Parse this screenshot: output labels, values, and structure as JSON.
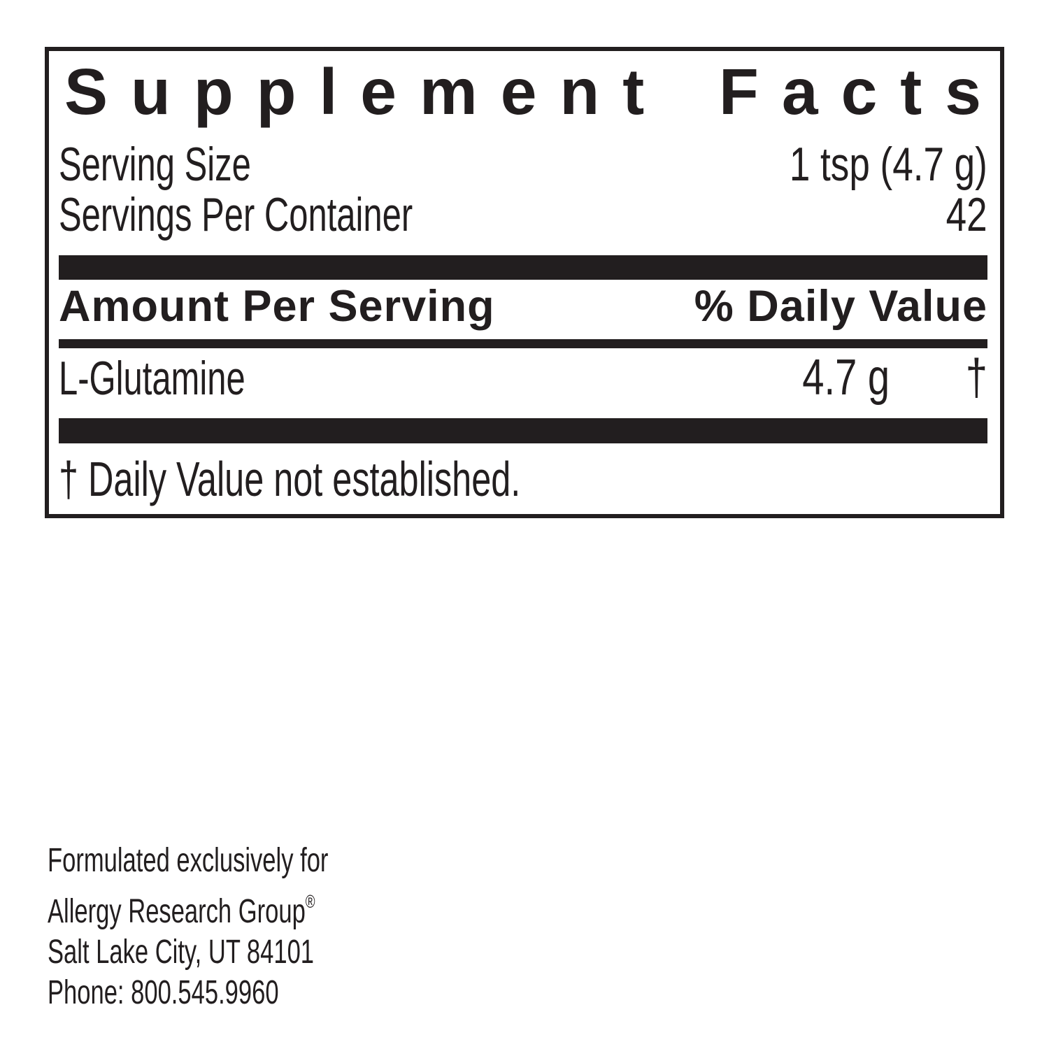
{
  "panel": {
    "title": "Supplement Facts",
    "serving_size": {
      "label": "Serving Size",
      "value": "1 tsp (4.7 g)"
    },
    "servings_per_container": {
      "label": "Servings Per Container",
      "value": "42"
    },
    "columns": {
      "amount": "Amount Per Serving",
      "daily_value": "% Daily Value"
    },
    "rows": [
      {
        "name": "L-Glutamine",
        "amount": "4.7 g",
        "daily_value": "†"
      }
    ],
    "footnote": "† Daily Value not established."
  },
  "footer": {
    "line1": "Formulated exclusively for",
    "brand": "Allergy Research Group",
    "brand_mark": "®",
    "line3": "Salt Lake City, UT 84101",
    "line4": "Phone: 800.545.9960"
  },
  "colors": {
    "ink": "#221e1f",
    "background": "#ffffff"
  }
}
